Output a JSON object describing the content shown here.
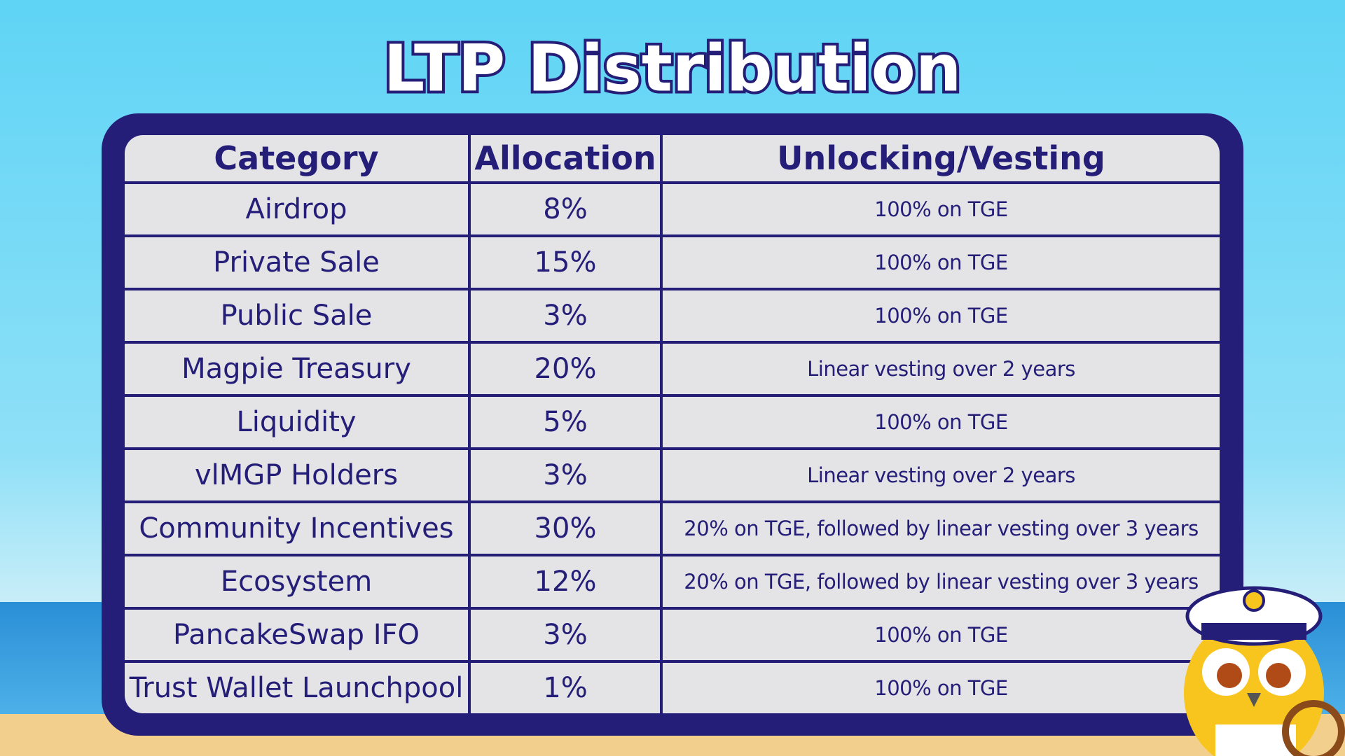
{
  "header": {
    "title": "LTP Distribution"
  },
  "table": {
    "columns": [
      "Category",
      "Allocation",
      "Unlocking/Vesting"
    ],
    "rows": [
      [
        "Airdrop",
        "8%",
        "100% on TGE"
      ],
      [
        "Private Sale",
        "15%",
        "100% on TGE"
      ],
      [
        "Public Sale",
        "3%",
        "100% on TGE"
      ],
      [
        "Magpie Treasury",
        "20%",
        "Linear vesting over 2 years"
      ],
      [
        "Liquidity",
        "5%",
        "100% on TGE"
      ],
      [
        "vlMGP Holders",
        "3%",
        "Linear vesting over 2 years"
      ],
      [
        "Community Incentives",
        "30%",
        "20% on TGE, followed by linear vesting over 3 years"
      ],
      [
        "Ecosystem",
        "12%",
        "20% on TGE, followed by linear vesting over 3 years"
      ],
      [
        "PancakeSwap IFO",
        "3%",
        "100% on TGE"
      ],
      [
        "Trust Wallet Launchpool",
        "1%",
        "100% on TGE"
      ]
    ]
  }
}
